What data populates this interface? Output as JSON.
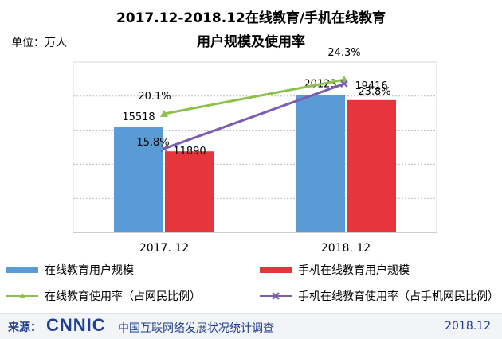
{
  "header": {
    "title_line1": "2017.12-2018.12在线教育/手机在线教育",
    "title_line2": "用户规模及使用率",
    "unit": "单位：万人"
  },
  "colors": {
    "online_bar": "#5b9bd5",
    "mobile_bar": "#e6353c",
    "online_rate": "#8ec04b",
    "mobile_rate": "#7a5db0"
  },
  "chart_data": {
    "type": "bar",
    "categories": [
      "2017. 12",
      "2018. 12"
    ],
    "series": [
      {
        "name": "在线教育用户规模",
        "kind": "bar",
        "values": [
          15518,
          20123
        ],
        "labels": [
          "15518",
          "20123"
        ]
      },
      {
        "name": "手机在线教育用户规模",
        "kind": "bar",
        "values": [
          11890,
          19416
        ],
        "labels": [
          "11890",
          "19416"
        ]
      },
      {
        "name": "在线教育使用率（占网民比例）",
        "kind": "line",
        "marker": "triangle",
        "values": [
          20.1,
          24.3
        ],
        "labels": [
          "20.1%",
          "24.3%"
        ]
      },
      {
        "name": "手机在线教育使用率（占手机网民比例）",
        "kind": "line",
        "marker": "x",
        "values": [
          15.8,
          23.8
        ],
        "labels": [
          "15.8%",
          "23.8%"
        ]
      }
    ],
    "ylim": [
      0,
      25000
    ],
    "grid": true,
    "legend_position": "bottom"
  },
  "footer": {
    "source_label": "来源：",
    "logo_text": "CNNIC",
    "organization": "中国互联网络发展状况统计调查",
    "date": "2018.12"
  }
}
